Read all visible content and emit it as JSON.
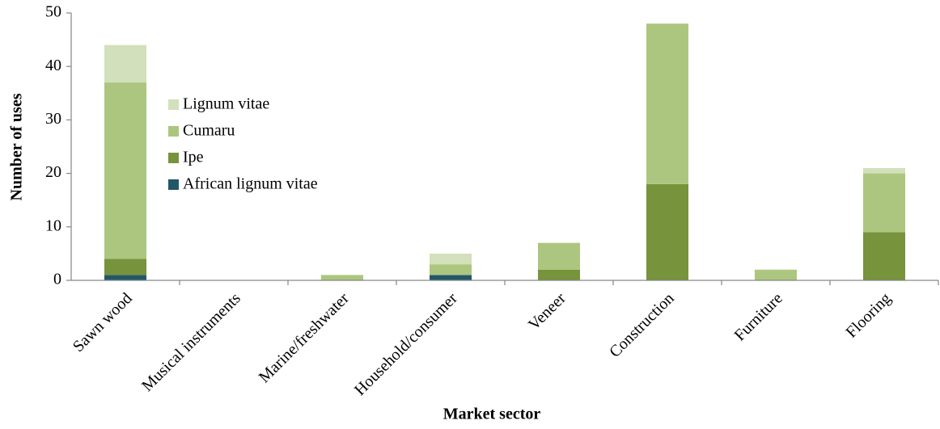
{
  "chart_data": {
    "type": "stacked_bar",
    "x_label": "Market sector",
    "y_label": "Number of uses",
    "categories": [
      "Sawn wood",
      "Musical instruments",
      "Marine/freshwater",
      "Household/consumer",
      "Veneer",
      "Construction",
      "Furniture",
      "Flooring"
    ],
    "series": [
      {
        "name": "African lignum vitae",
        "color": "#215868",
        "values": [
          1,
          0,
          0,
          1,
          0,
          0,
          0,
          0
        ]
      },
      {
        "name": "Ipe",
        "color": "#77933c",
        "values": [
          3,
          0,
          0,
          0,
          2,
          18,
          0,
          9
        ]
      },
      {
        "name": "Cumaru",
        "color": "#acc67f",
        "values": [
          33,
          0,
          1,
          2,
          5,
          30,
          2,
          11
        ]
      },
      {
        "name": "Lignum vitae",
        "color": "#d2e0bb",
        "values": [
          7,
          0,
          0,
          2,
          0,
          0,
          0,
          1
        ]
      }
    ],
    "ylim": [
      0,
      50
    ],
    "yticks": [
      0,
      10,
      20,
      30,
      40,
      50
    ],
    "grid": false,
    "legend": "upper left"
  }
}
